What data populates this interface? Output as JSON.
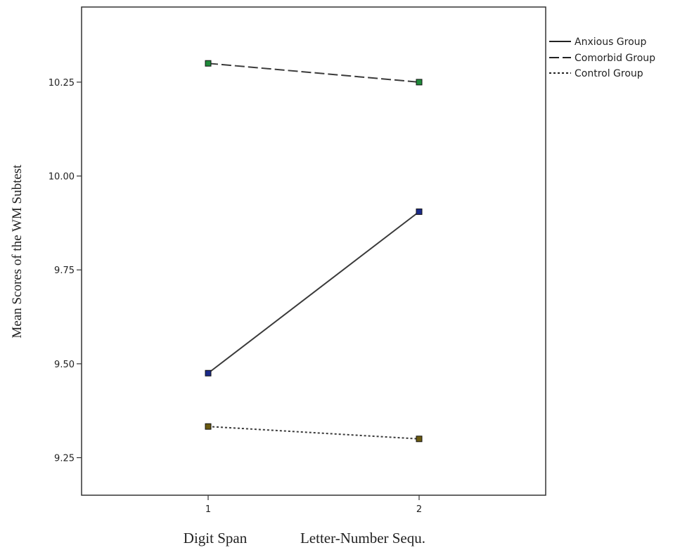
{
  "chart_data": {
    "type": "line",
    "ylabel": "Mean Scores of the WM Subtest",
    "x": [
      1,
      2
    ],
    "x_tick_labels": [
      "1",
      "2"
    ],
    "category_labels": [
      "Digit Span",
      "Letter-Number Sequ."
    ],
    "ylim": [
      9.15,
      10.45
    ],
    "y_ticks": [
      9.25,
      9.5,
      9.75,
      10.0,
      10.25
    ],
    "y_tick_labels": [
      "9.25",
      "9.50",
      "9.75",
      "10.00",
      "10.25"
    ],
    "grid": false,
    "legend_position": "top-right-outside",
    "series": [
      {
        "name": "Anxious Group",
        "values": [
          9.475,
          9.905
        ],
        "line_style": "solid",
        "marker_color": "#1a2a8a"
      },
      {
        "name": "Comorbid Group",
        "values": [
          10.3,
          10.25
        ],
        "line_style": "dashed",
        "marker_color": "#1f8a3a"
      },
      {
        "name": "Control Group",
        "values": [
          9.333,
          9.3
        ],
        "line_style": "dotted",
        "marker_color": "#6a5a10"
      }
    ]
  }
}
